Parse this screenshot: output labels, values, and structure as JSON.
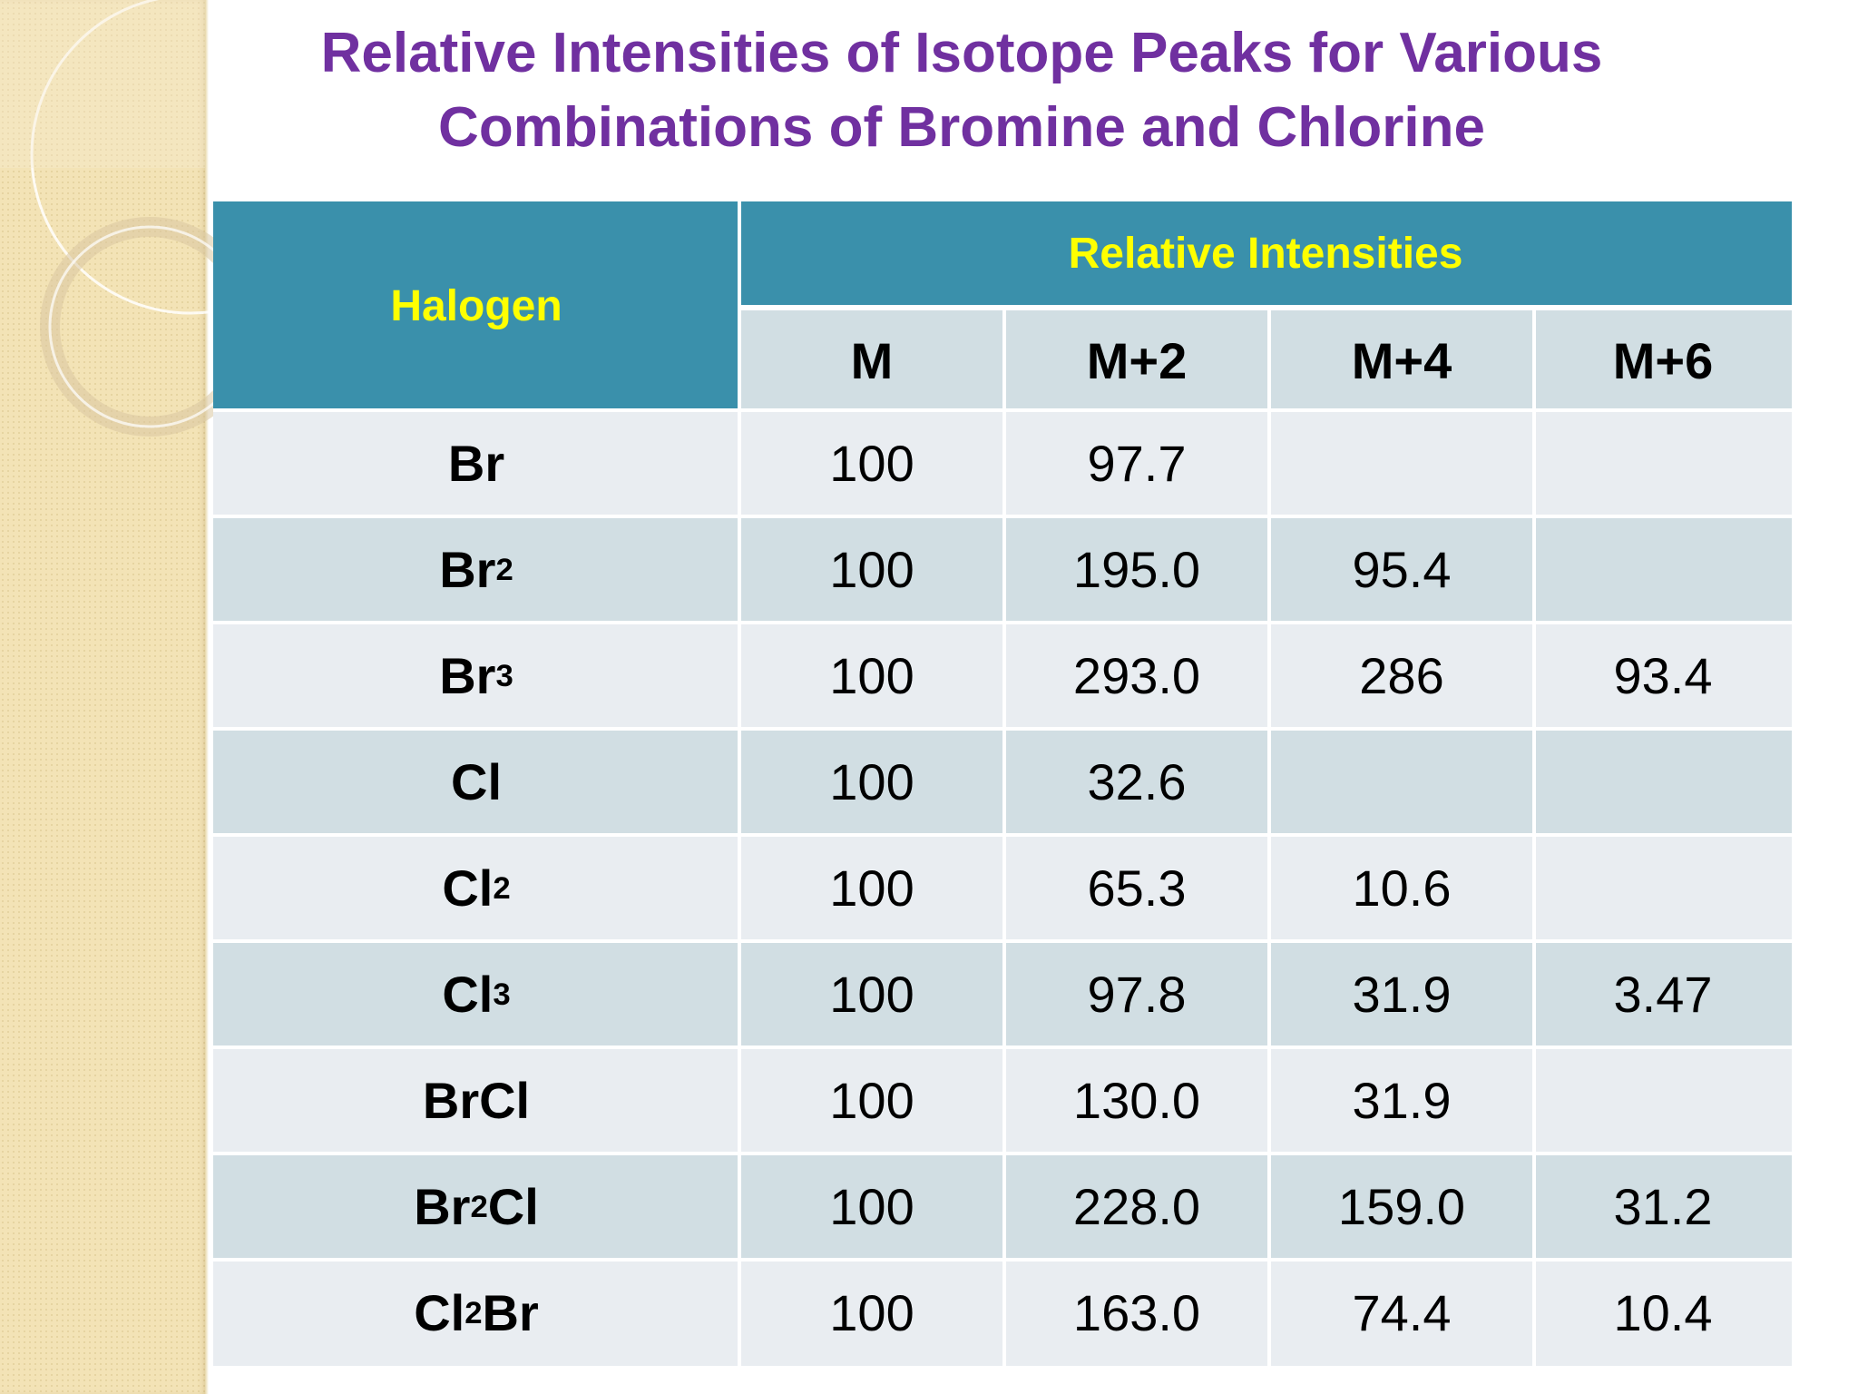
{
  "title": {
    "line1": "Relative Intensities of Isotope Peaks for Various",
    "line2": "Combinations of Bromine and Chlorine"
  },
  "table": {
    "halogen_header": "Halogen",
    "group_header": "Relative Intensities",
    "columns": [
      "M",
      "M+2",
      "M+4",
      "M+6"
    ],
    "rows": [
      {
        "base": "Br",
        "sub": "",
        "tail": "",
        "values": [
          "100",
          "97.7",
          "",
          ""
        ]
      },
      {
        "base": "Br",
        "sub": "2",
        "tail": "",
        "values": [
          "100",
          "195.0",
          "95.4",
          ""
        ]
      },
      {
        "base": "Br",
        "sub": "3",
        "tail": "",
        "values": [
          "100",
          "293.0",
          "286",
          "93.4"
        ]
      },
      {
        "base": "Cl",
        "sub": "",
        "tail": "",
        "values": [
          "100",
          "32.6",
          "",
          ""
        ]
      },
      {
        "base": "Cl",
        "sub": "2",
        "tail": "",
        "values": [
          "100",
          "65.3",
          "10.6",
          ""
        ]
      },
      {
        "base": "Cl",
        "sub": "3",
        "tail": "",
        "values": [
          "100",
          "97.8",
          "31.9",
          "3.47"
        ]
      },
      {
        "base": "BrCl",
        "sub": "",
        "tail": "",
        "values": [
          "100",
          "130.0",
          "31.9",
          ""
        ]
      },
      {
        "base": "Br",
        "sub": "2",
        "tail": "Cl",
        "values": [
          "100",
          "228.0",
          "159.0",
          "31.2"
        ]
      },
      {
        "base": "Cl",
        "sub": "2",
        "tail": "Br",
        "values": [
          "100",
          "163.0",
          "74.4",
          "10.4"
        ]
      }
    ]
  },
  "colors": {
    "title": "#7030a0",
    "header_bg": "#3a90ab",
    "header_text": "#ffff00",
    "row_light": "#e9edf1",
    "row_dark": "#d1dee3"
  }
}
